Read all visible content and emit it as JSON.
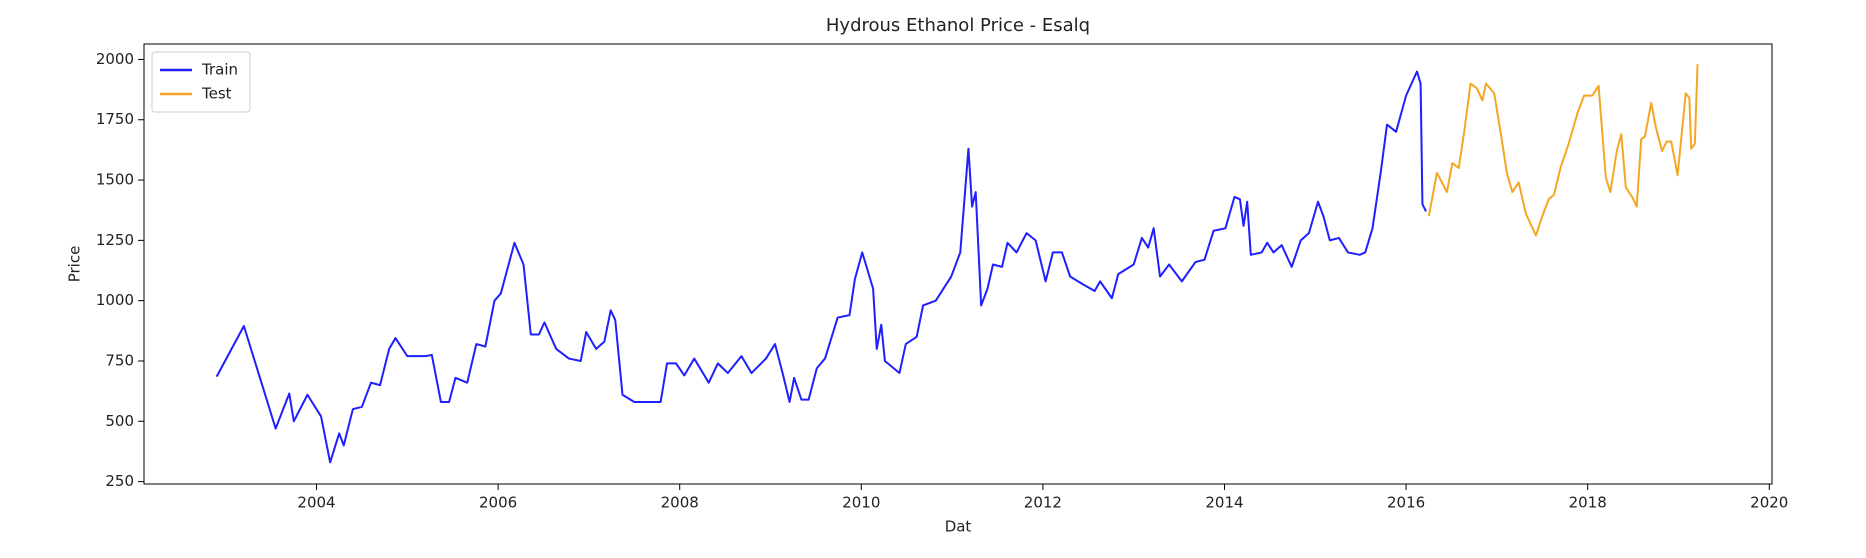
{
  "chart_data": {
    "type": "line",
    "title": "Hydrous Ethanol Price - Esalq",
    "xlabel": "Dat",
    "ylabel": "Price",
    "xlim": [
      2002.1,
      2020.03
    ],
    "xticks": [
      2004,
      2006,
      2008,
      2010,
      2012,
      2014,
      2016,
      2018,
      2020
    ],
    "ylim": [
      240,
      2064
    ],
    "yticks": [
      250,
      500,
      750,
      1000,
      1250,
      1500,
      1750,
      2000
    ],
    "grid": false,
    "legend": "upper left",
    "series": [
      {
        "name": "Train",
        "color": "#1f1fff",
        "x": [
          2002.9,
          2003.2,
          2003.55,
          2003.7,
          2003.75,
          2003.9,
          2004.05,
          2004.15,
          2004.25,
          2004.3,
          2004.4,
          2004.5,
          2004.6,
          2004.7,
          2004.8,
          2004.87,
          2005.0,
          2005.2,
          2005.27,
          2005.37,
          2005.46,
          2005.53,
          2005.66,
          2005.76,
          2005.86,
          2005.96,
          2006.03,
          2006.18,
          2006.28,
          2006.36,
          2006.45,
          2006.51,
          2006.64,
          2006.78,
          2006.91,
          2006.97,
          2007.08,
          2007.17,
          2007.24,
          2007.29,
          2007.37,
          2007.5,
          2007.79,
          2007.86,
          2007.96,
          2008.05,
          2008.16,
          2008.32,
          2008.42,
          2008.53,
          2008.68,
          2008.79,
          2008.95,
          2009.05,
          2009.14,
          2009.21,
          2009.26,
          2009.34,
          2009.42,
          2009.51,
          2009.6,
          2009.74,
          2009.87,
          2009.93,
          2010.01,
          2010.13,
          2010.17,
          2010.22,
          2010.26,
          2010.42,
          2010.49,
          2010.61,
          2010.68,
          2010.82,
          2010.99,
          2011.09,
          2011.18,
          2011.22,
          2011.26,
          2011.32,
          2011.39,
          2011.45,
          2011.55,
          2011.61,
          2011.71,
          2011.82,
          2011.92,
          2012.03,
          2012.11,
          2012.21,
          2012.3,
          2012.43,
          2012.57,
          2012.63,
          2012.76,
          2012.83,
          2013.0,
          2013.09,
          2013.16,
          2013.22,
          2013.29,
          2013.39,
          2013.53,
          2013.68,
          2013.78,
          2013.88,
          2014.01,
          2014.11,
          2014.17,
          2014.21,
          2014.25,
          2014.29,
          2014.41,
          2014.47,
          2014.54,
          2014.63,
          2014.74,
          2014.84,
          2014.93,
          2015.03,
          2015.09,
          2015.16,
          2015.26,
          2015.36,
          2015.49,
          2015.55,
          2015.63,
          2015.72,
          2015.79,
          2015.89,
          2016.0,
          2016.12,
          2016.16,
          2016.18,
          2016.22
        ],
        "values": [
          685,
          895,
          470,
          615,
          500,
          610,
          520,
          330,
          450,
          400,
          550,
          560,
          660,
          650,
          800,
          845,
          770,
          770,
          775,
          580,
          580,
          680,
          660,
          820,
          810,
          1000,
          1030,
          1240,
          1150,
          860,
          860,
          910,
          800,
          760,
          750,
          870,
          800,
          830,
          960,
          920,
          610,
          580,
          580,
          740,
          740,
          690,
          760,
          660,
          740,
          700,
          770,
          700,
          760,
          820,
          690,
          580,
          680,
          590,
          590,
          720,
          760,
          930,
          940,
          1090,
          1200,
          1050,
          800,
          900,
          750,
          700,
          820,
          850,
          980,
          1000,
          1100,
          1200,
          1630,
          1390,
          1450,
          980,
          1050,
          1150,
          1140,
          1240,
          1200,
          1280,
          1250,
          1080,
          1200,
          1200,
          1100,
          1070,
          1040,
          1080,
          1010,
          1110,
          1150,
          1260,
          1220,
          1300,
          1100,
          1150,
          1080,
          1160,
          1170,
          1290,
          1300,
          1430,
          1420,
          1310,
          1410,
          1190,
          1200,
          1240,
          1200,
          1230,
          1140,
          1250,
          1280,
          1410,
          1350,
          1250,
          1260,
          1200,
          1190,
          1200,
          1300,
          1530,
          1730,
          1700,
          1850,
          1950,
          1900,
          1400,
          1370
        ]
      },
      {
        "name": "Test",
        "color": "#f5a623",
        "x": [
          2016.25,
          2016.34,
          2016.45,
          2016.51,
          2016.58,
          2016.64,
          2016.71,
          2016.78,
          2016.84,
          2016.88,
          2016.97,
          2017.04,
          2017.11,
          2017.17,
          2017.24,
          2017.32,
          2017.43,
          2017.5,
          2017.57,
          2017.63,
          2017.7,
          2017.79,
          2017.89,
          2017.96,
          2018.05,
          2018.12,
          2018.16,
          2018.2,
          2018.25,
          2018.32,
          2018.37,
          2018.42,
          2018.49,
          2018.54,
          2018.59,
          2018.63,
          2018.7,
          2018.75,
          2018.82,
          2018.87,
          2018.92,
          2018.99,
          2019.08,
          2019.12,
          2019.14,
          2019.18,
          2019.21
        ],
        "values": [
          1350,
          1530,
          1450,
          1570,
          1550,
          1700,
          1900,
          1880,
          1830,
          1900,
          1860,
          1700,
          1530,
          1450,
          1490,
          1360,
          1270,
          1350,
          1420,
          1440,
          1550,
          1650,
          1780,
          1850,
          1850,
          1890,
          1700,
          1510,
          1450,
          1620,
          1690,
          1470,
          1430,
          1390,
          1670,
          1680,
          1820,
          1720,
          1620,
          1660,
          1660,
          1520,
          1860,
          1840,
          1630,
          1650,
          1980
        ]
      }
    ]
  }
}
